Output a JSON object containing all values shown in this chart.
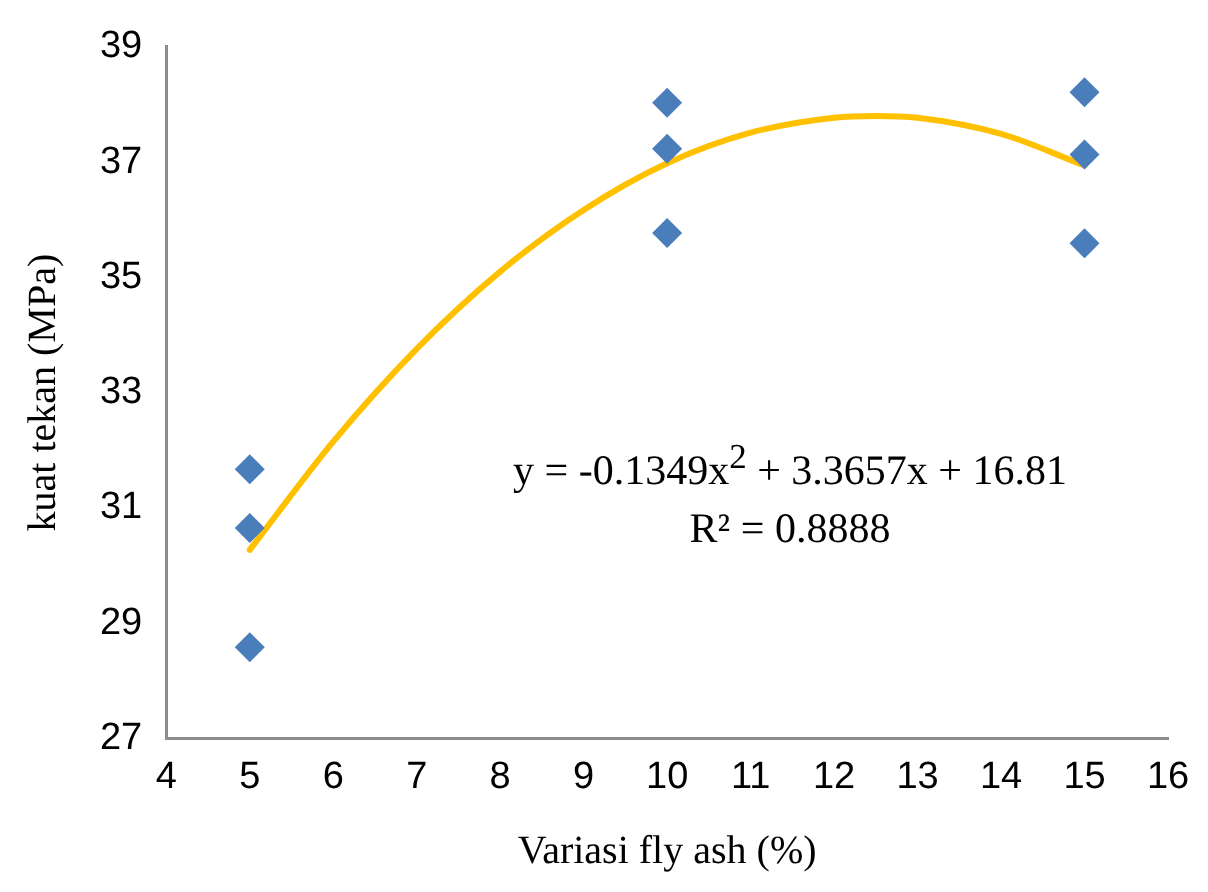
{
  "chart_data": {
    "type": "scatter",
    "xlabel": "Variasi fly ash (%)",
    "ylabel": "kuat tekan (MPa)",
    "xlim": [
      4,
      16
    ],
    "xticks": [
      4,
      5,
      6,
      7,
      8,
      9,
      10,
      11,
      12,
      13,
      14,
      15,
      16
    ],
    "ylim": [
      27,
      39
    ],
    "yticks": [
      27,
      29,
      31,
      33,
      35,
      37,
      39
    ],
    "grid": false,
    "legend": false,
    "marker": "diamond",
    "annotations": [
      "y = -0.1349x$^{2}$ + 3.3657x + 16.81",
      "R² = 0.8888"
    ],
    "series": [
      {
        "type": "scatter",
        "color": "#4a7ebb",
        "x": [
          5,
          5,
          5,
          10,
          10,
          10,
          15,
          15,
          15
        ],
        "values": [
          31.67,
          30.65,
          28.58,
          38.03,
          37.23,
          35.77,
          38.21,
          37.13,
          35.59
        ]
      },
      {
        "type": "line",
        "color": "#ffc000",
        "marker": "none",
        "x": [
          5,
          6,
          7,
          8,
          9,
          10,
          11,
          12,
          12.5,
          13,
          14,
          15
        ],
        "values": [
          30.27,
          32.15,
          33.76,
          35.1,
          36.17,
          36.98,
          37.51,
          37.77,
          37.8,
          37.77,
          37.49,
          36.94
        ]
      }
    ]
  }
}
